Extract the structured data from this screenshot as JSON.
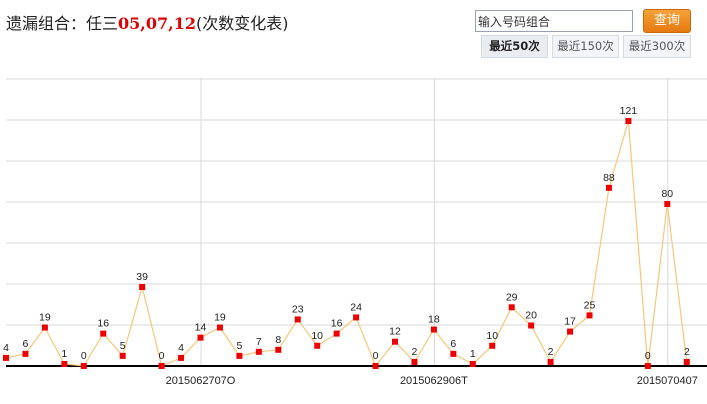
{
  "title": {
    "prefix": "遗漏组合：任三",
    "numbers": "05,07,12",
    "suffix": "(次数变化表)"
  },
  "search": {
    "value": "输入号码组合"
  },
  "query_button": "查询",
  "range_buttons": [
    {
      "label": "最近50次",
      "active": true
    },
    {
      "label": "最近150次",
      "active": false
    },
    {
      "label": "最近300次",
      "active": false
    }
  ],
  "colors": {
    "line": "#f6c77a",
    "marker": "#ee0000",
    "grid": "#d9d9d9",
    "axis": "#000000"
  },
  "chart_data": {
    "type": "line",
    "x_tick_labels": [
      "2015062707O",
      "2015062906T",
      "2015070407"
    ],
    "values": [
      4,
      6,
      19,
      1,
      0,
      16,
      5,
      39,
      0,
      4,
      14,
      19,
      5,
      7,
      8,
      23,
      10,
      16,
      24,
      0,
      12,
      2,
      18,
      6,
      1,
      10,
      29,
      20,
      2,
      17,
      25,
      88,
      121,
      0,
      80,
      2
    ],
    "ylim": [
      0,
      140
    ],
    "grid": true,
    "title": "",
    "xlabel": "",
    "ylabel": ""
  }
}
